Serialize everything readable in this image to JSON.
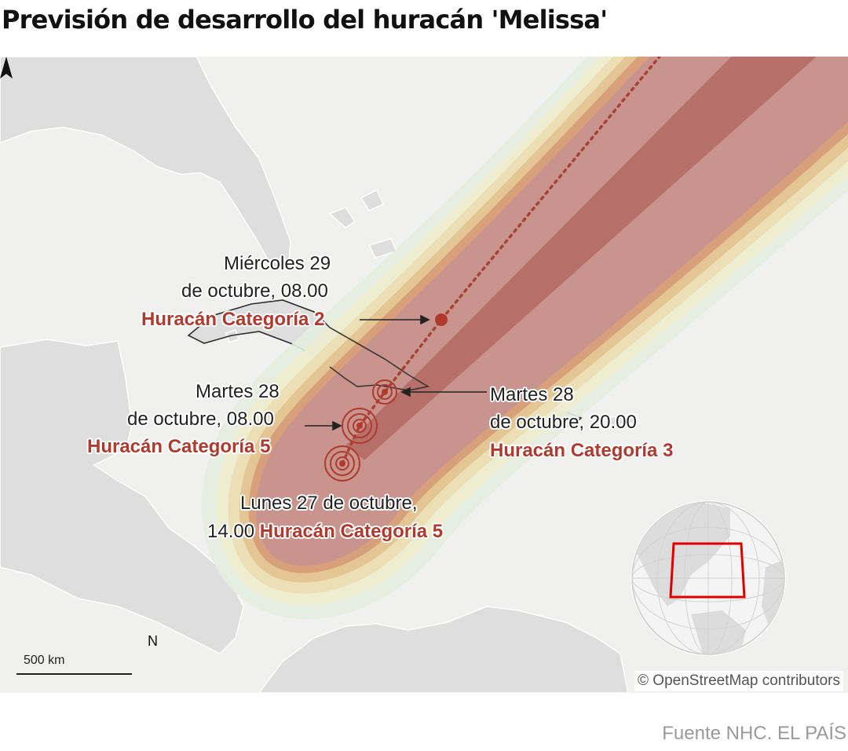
{
  "title": "Previsión de desarrollo del huracán 'Melissa'",
  "labels": {
    "wed": {
      "line1": "Miércoles 29",
      "line2": "de octubre, 08.00",
      "category": "Huracán Categoría 2"
    },
    "tue_am": {
      "line1": "Martes 28",
      "line2": "de octubre, 08.00",
      "category": "Huracán Categoría 5"
    },
    "tue_pm": {
      "line1": "Martes 28",
      "line2": "de octubre, 20.00",
      "category": "Huracán Categoría 3"
    },
    "mon": {
      "line1": "Lunes 27 de octubre,",
      "time": "14.00",
      "category": "Huracán Categoría 5"
    }
  },
  "scale": {
    "label": "500 km"
  },
  "north": "N",
  "attribution": "© OpenStreetMap contributors",
  "source": "Fuente NHC. EL PAÍS",
  "colors": {
    "land": "#dedede",
    "sea": "#f0f0ef",
    "cone_outer": [
      "#e4eddf",
      "#eeeccf",
      "#ecdfb5",
      "#e4c594",
      "#d8a07a"
    ],
    "cone_inner": "#c7928e",
    "cone_core": "#b36a63",
    "category_text": "#b03a2e",
    "track": "#b03a2e"
  }
}
